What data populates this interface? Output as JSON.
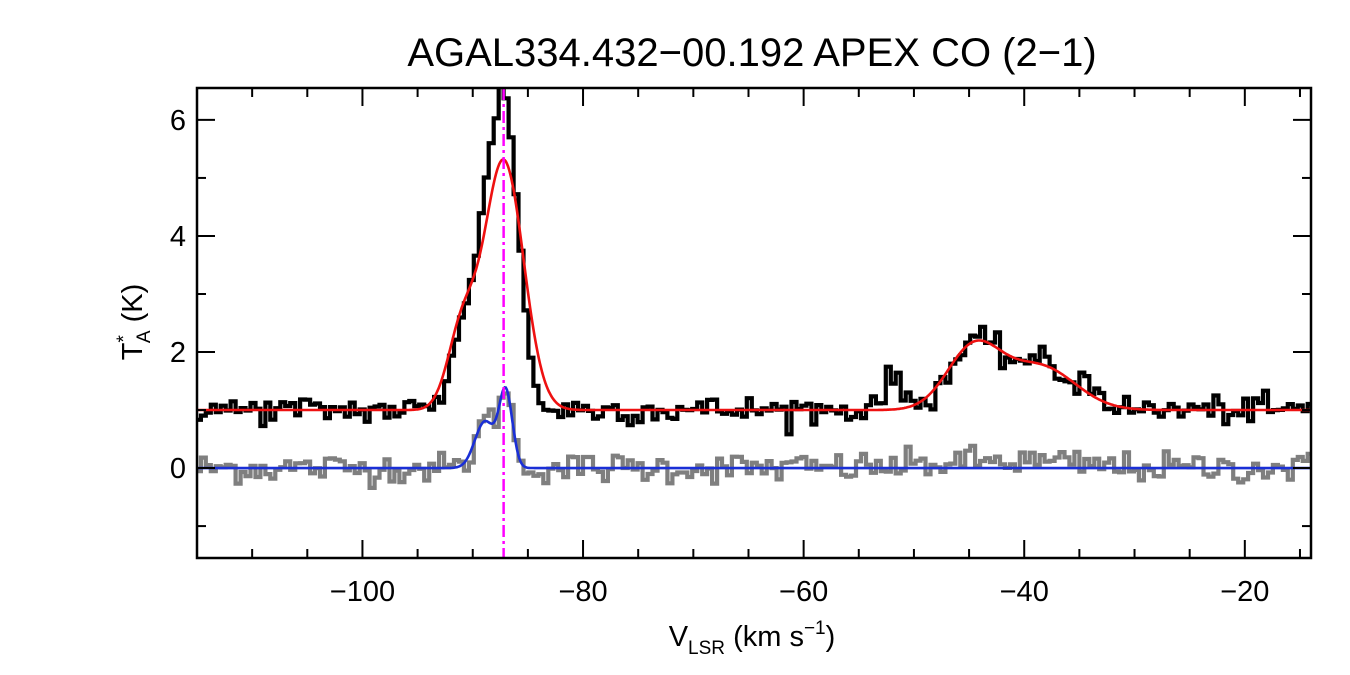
{
  "chart_data": {
    "type": "line",
    "title": "AGAL334.432−00.192  APEX CO (2−1)",
    "xlabel": {
      "main": "V",
      "sub": "LSR",
      "rest": " (km s",
      "sup": "−1",
      "end": ")"
    },
    "ylabel": {
      "main": "T",
      "sup": "*",
      "sub": "A",
      "rest": " (K)"
    },
    "xlim": [
      -115,
      -14
    ],
    "ylim": [
      -1.55,
      6.55
    ],
    "x_major_ticks": [
      -100,
      -80,
      -60,
      -40,
      -20
    ],
    "x_tick_labels": [
      "−100",
      "−80",
      "−60",
      "−40",
      "−20"
    ],
    "x_minor_step": 5,
    "y_major_ticks": [
      0,
      2,
      4,
      6
    ],
    "y_tick_labels": [
      "0",
      "2",
      "4",
      "6"
    ],
    "y_minor_step": 1,
    "grid": false,
    "legend": "none",
    "vertical_marker": {
      "x": -87.2,
      "color": "#ff00ff",
      "style": "dash-dot"
    },
    "series": [
      {
        "role": "CO (2-1) spectrum, offset +1 K",
        "style": "histogram",
        "color": "#000000",
        "baseline": 1.0,
        "noise": 0.12,
        "components": [
          {
            "center": -91.0,
            "amp": 1.3,
            "sigma": 1.0
          },
          {
            "center": -88.3,
            "amp": 3.6,
            "sigma": 1.3
          },
          {
            "center": -86.6,
            "amp": 3.4,
            "sigma": 1.1
          },
          {
            "center": -52.0,
            "amp": 0.5,
            "sigma": 1.0
          },
          {
            "center": -44.5,
            "amp": 1.1,
            "sigma": 2.3
          },
          {
            "center": -38.8,
            "amp": 0.8,
            "sigma": 2.5
          },
          {
            "center": -34.0,
            "amp": 0.35,
            "sigma": 1.2
          }
        ]
      },
      {
        "role": "CO (2-1) Gaussian fit",
        "style": "line",
        "color": "#ee1111",
        "baseline": 1.0,
        "components": [
          {
            "center": -91.0,
            "amp": 1.3,
            "sigma": 1.3
          },
          {
            "center": -87.2,
            "amp": 4.3,
            "sigma": 1.8
          },
          {
            "center": -44.6,
            "amp": 1.05,
            "sigma": 2.4
          },
          {
            "center": -38.6,
            "amp": 0.75,
            "sigma": 3.2
          }
        ]
      },
      {
        "role": "second transition spectrum",
        "style": "histogram",
        "color": "#7f7f7f",
        "baseline": 0.0,
        "noise": 0.13,
        "components": [
          {
            "center": -88.8,
            "amp": 0.8,
            "sigma": 0.9
          },
          {
            "center": -87.0,
            "amp": 1.3,
            "sigma": 0.6
          },
          {
            "center": -42.0,
            "amp": 0.12,
            "sigma": 6.0
          }
        ]
      },
      {
        "role": "second transition Gaussian fit",
        "style": "line",
        "color": "#1a2fd6",
        "baseline": 0.0,
        "components": [
          {
            "center": -88.9,
            "amp": 0.8,
            "sigma": 0.9
          },
          {
            "center": -87.0,
            "amp": 1.3,
            "sigma": 0.6
          }
        ]
      }
    ]
  }
}
